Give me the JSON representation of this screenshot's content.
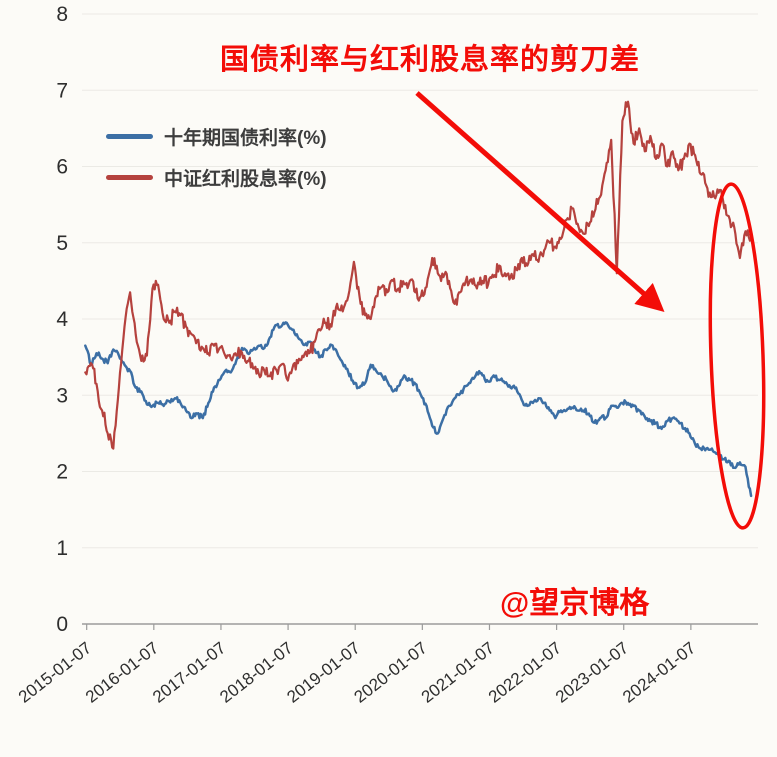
{
  "chart_data": {
    "type": "line",
    "title": "国债利率与红利股息率的剪刀差",
    "watermark": "@望京博格",
    "xlabel": "",
    "ylabel": "",
    "ylim": [
      0,
      8
    ],
    "grid": true,
    "legend_position": "upper-left-inside",
    "y_ticks": [
      0,
      1,
      2,
      3,
      4,
      5,
      6,
      7,
      8
    ],
    "x_tick_labels": [
      "2015-01-07",
      "2016-01-07",
      "2017-01-07",
      "2018-01-07",
      "2019-01-07",
      "2020-01-07",
      "2021-01-07",
      "2022-01-07",
      "2023-01-07",
      "2024-01-07"
    ],
    "x_interval": "monthly",
    "series": [
      {
        "name": "十年期国债利率(%)",
        "color": "#3c6fa5",
        "x0": 2015.0,
        "values": [
          3.65,
          3.4,
          3.55,
          3.48,
          3.42,
          3.6,
          3.52,
          3.4,
          3.32,
          3.1,
          3.05,
          2.88,
          2.86,
          2.9,
          2.86,
          2.92,
          2.96,
          2.9,
          2.8,
          2.7,
          2.76,
          2.7,
          2.9,
          3.1,
          3.2,
          3.32,
          3.3,
          3.46,
          3.62,
          3.55,
          3.6,
          3.65,
          3.62,
          3.76,
          3.92,
          3.9,
          3.95,
          3.86,
          3.76,
          3.66,
          3.7,
          3.6,
          3.5,
          3.6,
          3.66,
          3.56,
          3.42,
          3.3,
          3.15,
          3.1,
          3.16,
          3.4,
          3.32,
          3.26,
          3.18,
          3.05,
          3.12,
          3.26,
          3.2,
          3.15,
          3.0,
          2.86,
          2.6,
          2.5,
          2.7,
          2.86,
          2.96,
          3.02,
          3.12,
          3.2,
          3.3,
          3.26,
          3.18,
          3.26,
          3.2,
          3.16,
          3.1,
          3.1,
          2.94,
          2.86,
          2.9,
          2.96,
          2.9,
          2.8,
          2.7,
          2.8,
          2.8,
          2.84,
          2.8,
          2.8,
          2.76,
          2.64,
          2.7,
          2.7,
          2.86,
          2.84,
          2.9,
          2.9,
          2.86,
          2.8,
          2.72,
          2.66,
          2.64,
          2.56,
          2.66,
          2.7,
          2.66,
          2.56,
          2.5,
          2.36,
          2.3,
          2.3,
          2.3,
          2.24,
          2.16,
          2.14,
          2.05,
          2.12,
          2.06,
          1.68
        ]
      },
      {
        "name": "中证红利股息率(%)",
        "color": "#b5423e",
        "x0": 2015.0,
        "values": [
          3.3,
          3.42,
          3.15,
          2.8,
          2.5,
          2.3,
          3.1,
          3.9,
          4.35,
          3.8,
          3.45,
          3.52,
          4.4,
          4.45,
          4.0,
          3.95,
          4.1,
          4.05,
          3.9,
          3.8,
          3.72,
          3.62,
          3.55,
          3.65,
          3.62,
          3.52,
          3.48,
          3.52,
          3.56,
          3.45,
          3.35,
          3.28,
          3.32,
          3.25,
          3.35,
          3.4,
          3.22,
          3.35,
          3.42,
          3.5,
          3.55,
          3.7,
          3.85,
          3.95,
          3.9,
          4.2,
          4.1,
          4.3,
          4.75,
          4.3,
          4.05,
          4.0,
          4.3,
          4.42,
          4.35,
          4.5,
          4.4,
          4.46,
          4.5,
          4.35,
          4.3,
          4.42,
          4.8,
          4.6,
          4.55,
          4.5,
          4.2,
          4.35,
          4.5,
          4.52,
          4.4,
          4.5,
          4.45,
          4.55,
          4.7,
          4.6,
          4.55,
          4.65,
          4.8,
          4.7,
          4.85,
          4.75,
          4.9,
          5.0,
          4.95,
          5.05,
          5.3,
          5.45,
          5.25,
          5.12,
          5.22,
          5.4,
          5.6,
          5.95,
          6.35,
          4.6,
          6.6,
          6.85,
          6.3,
          6.5,
          6.2,
          6.4,
          6.1,
          6.3,
          6.0,
          6.2,
          5.95,
          6.1,
          6.3,
          6.15,
          5.9,
          5.75,
          5.6,
          5.7,
          5.55,
          5.35,
          5.2,
          4.8,
          5.15,
          5.05
        ]
      }
    ]
  },
  "annotations": {
    "accent_color": "#f30d08"
  },
  "colors": {
    "background": "#fcfbf7",
    "axis": "#9b9b9b",
    "tick_text": "#2e2e2e",
    "grid": "#ebeae5"
  }
}
